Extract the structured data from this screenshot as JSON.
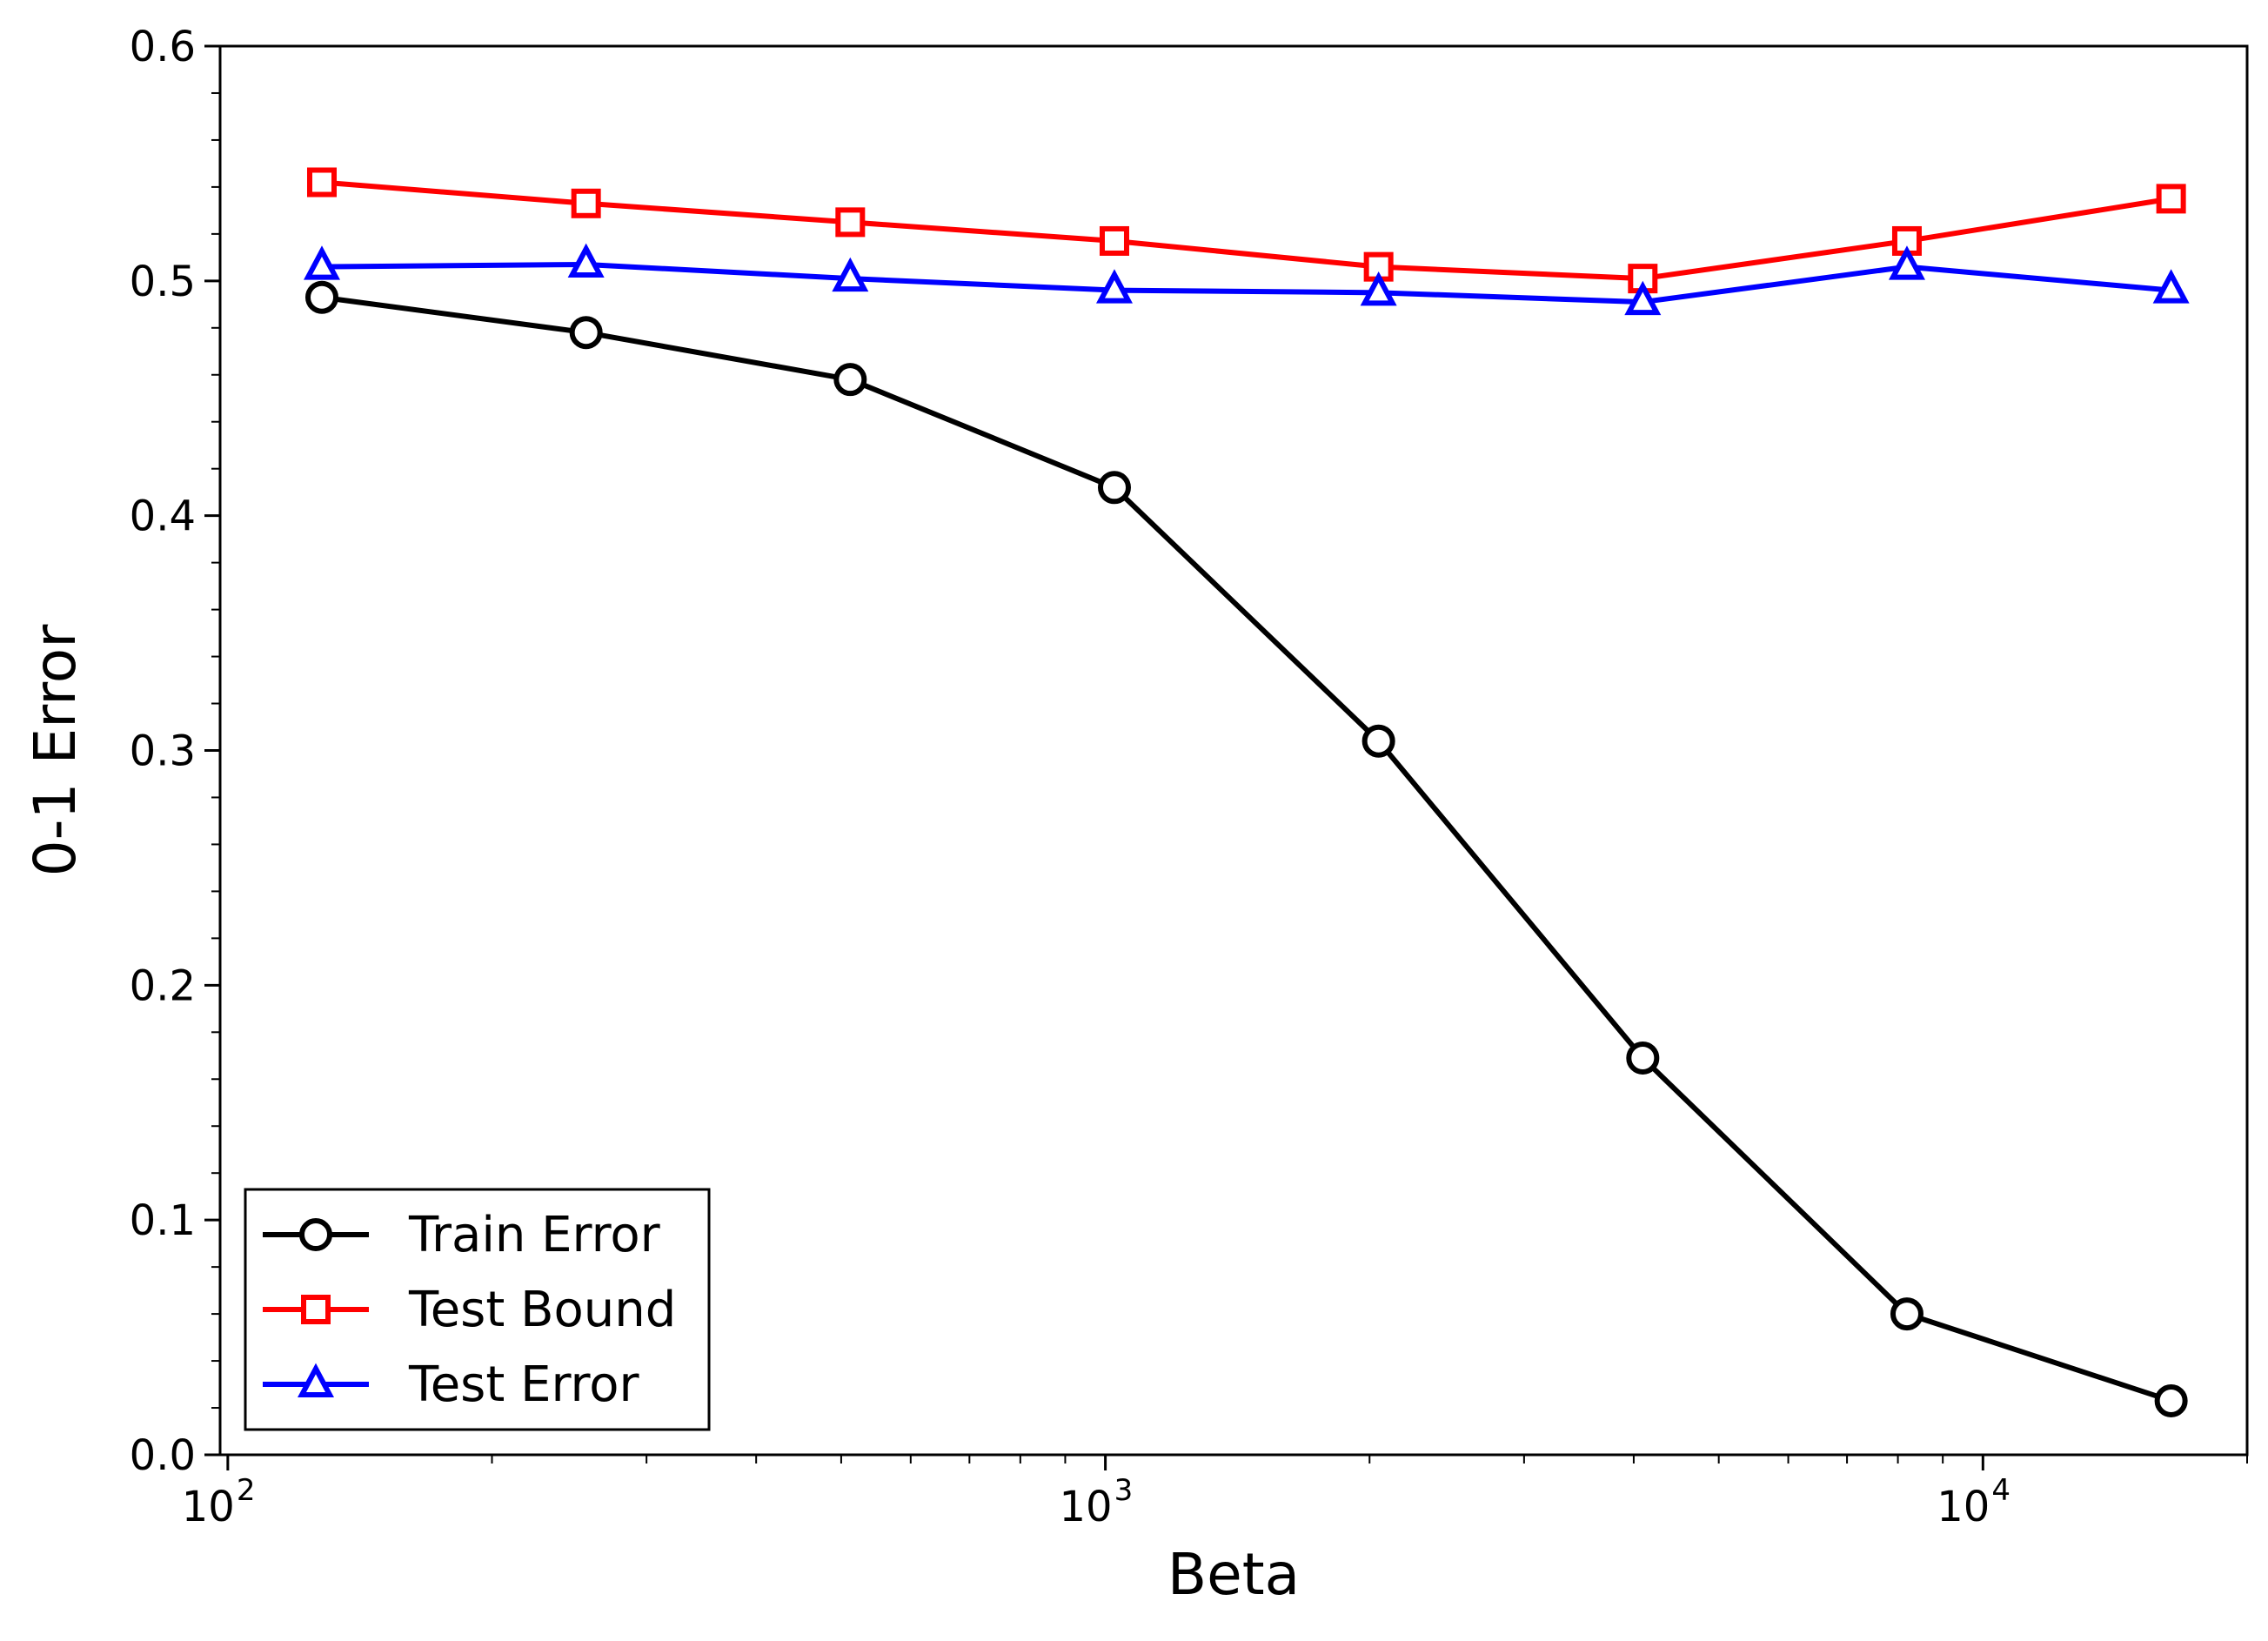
{
  "chart_data": {
    "type": "line",
    "xscale": "log",
    "xlabel": "Beta",
    "ylabel": "0-1 Error",
    "xlim": [
      98,
      20000
    ],
    "ylim": [
      0.0,
      0.6
    ],
    "yticks": [
      "0.0",
      "0.1",
      "0.2",
      "0.3",
      "0.4",
      "0.5",
      "0.6"
    ],
    "xticks": [
      {
        "value": 100,
        "base": "10",
        "exp": "2"
      },
      {
        "value": 1000,
        "base": "10",
        "exp": "3"
      },
      {
        "value": 10000,
        "base": "10",
        "exp": "4"
      }
    ],
    "grid": false,
    "legend_position": "lower-left",
    "x": [
      128,
      256,
      512,
      1024,
      2048,
      4096,
      8192,
      16384
    ],
    "series": [
      {
        "name": "Train Error",
        "marker": "circle",
        "color": "#000000",
        "values": [
          0.493,
          0.478,
          0.458,
          0.412,
          0.304,
          0.169,
          0.06,
          0.023
        ]
      },
      {
        "name": "Test Bound",
        "marker": "square",
        "color": "#ff0000",
        "values": [
          0.542,
          0.533,
          0.525,
          0.517,
          0.506,
          0.501,
          0.517,
          0.535
        ]
      },
      {
        "name": "Test Error",
        "marker": "triangle",
        "color": "#0000ff",
        "values": [
          0.506,
          0.507,
          0.501,
          0.496,
          0.495,
          0.491,
          0.506,
          0.496
        ]
      }
    ]
  }
}
